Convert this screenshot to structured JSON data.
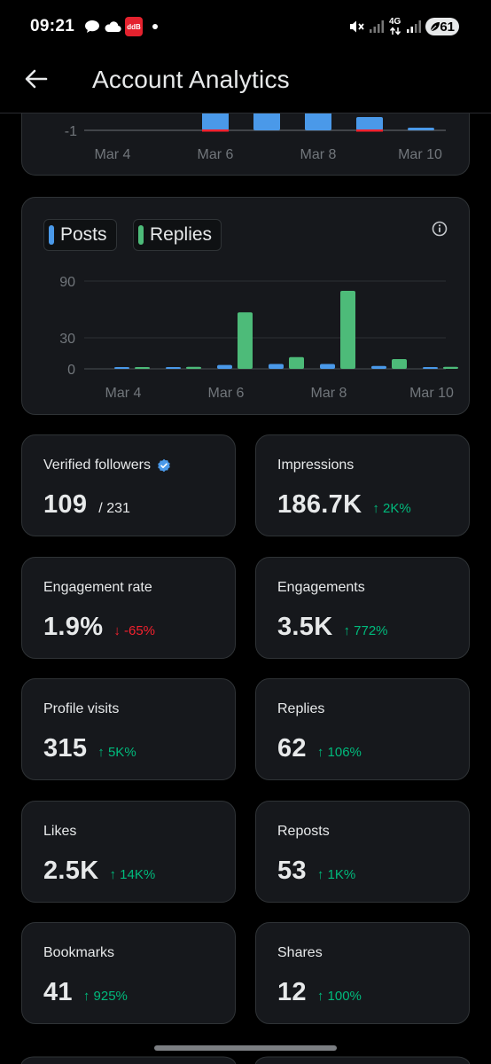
{
  "status_bar": {
    "time": "09:21",
    "app_badge": "ddB",
    "network": "4G",
    "battery": "61"
  },
  "header": {
    "title": "Account Analytics"
  },
  "colors": {
    "posts": "#4a99e9",
    "replies": "#4dbb79",
    "negative": "#f4212e",
    "positive": "#00ba7c"
  },
  "chart_data": [
    {
      "type": "bar",
      "title": "",
      "x": [
        "Mar 4",
        "Mar 5",
        "Mar 6",
        "Mar 7",
        "Mar 8",
        "Mar 9",
        "Mar 10"
      ],
      "tick_labels": [
        "Mar 4",
        "Mar 6",
        "Mar 8",
        "Mar 10"
      ],
      "y_tick_labels": [
        "-1"
      ],
      "note": "partially scrolled out of view",
      "series": [
        {
          "values": [
            null,
            null,
            null,
            null,
            null,
            null,
            null
          ]
        }
      ]
    },
    {
      "type": "bar",
      "x": [
        "Mar 4",
        "Mar 5",
        "Mar 6",
        "Mar 7",
        "Mar 8",
        "Mar 9",
        "Mar 10"
      ],
      "tick_labels": [
        "Mar 4",
        "Mar 6",
        "Mar 8",
        "Mar 10"
      ],
      "y_ticks": [
        0,
        30,
        90
      ],
      "ylim": [
        0,
        90
      ],
      "grid": true,
      "legend_position": "top-left",
      "series": [
        {
          "name": "Posts",
          "values": [
            0,
            1,
            4,
            5,
            5,
            3,
            1
          ]
        },
        {
          "name": "Replies",
          "values": [
            0,
            2,
            58,
            12,
            80,
            10,
            2
          ]
        }
      ]
    }
  ],
  "stats": [
    {
      "label": "Verified followers",
      "value": "109",
      "sub": "/ 231",
      "change": "",
      "direction": "",
      "verified": true
    },
    {
      "label": "Impressions",
      "value": "186.7K",
      "sub": "",
      "change": "2K%",
      "direction": "up"
    },
    {
      "label": "Engagement rate",
      "value": "1.9%",
      "sub": "",
      "change": "-65%",
      "direction": "down"
    },
    {
      "label": "Engagements",
      "value": "3.5K",
      "sub": "",
      "change": "772%",
      "direction": "up"
    },
    {
      "label": "Profile visits",
      "value": "315",
      "sub": "",
      "change": "5K%",
      "direction": "up"
    },
    {
      "label": "Replies",
      "value": "62",
      "sub": "",
      "change": "106%",
      "direction": "up"
    },
    {
      "label": "Likes",
      "value": "2.5K",
      "sub": "",
      "change": "14K%",
      "direction": "up"
    },
    {
      "label": "Reposts",
      "value": "53",
      "sub": "",
      "change": "1K%",
      "direction": "up"
    },
    {
      "label": "Bookmarks",
      "value": "41",
      "sub": "",
      "change": "925%",
      "direction": "up"
    },
    {
      "label": "Shares",
      "value": "12",
      "sub": "",
      "change": "100%",
      "direction": "up"
    }
  ]
}
